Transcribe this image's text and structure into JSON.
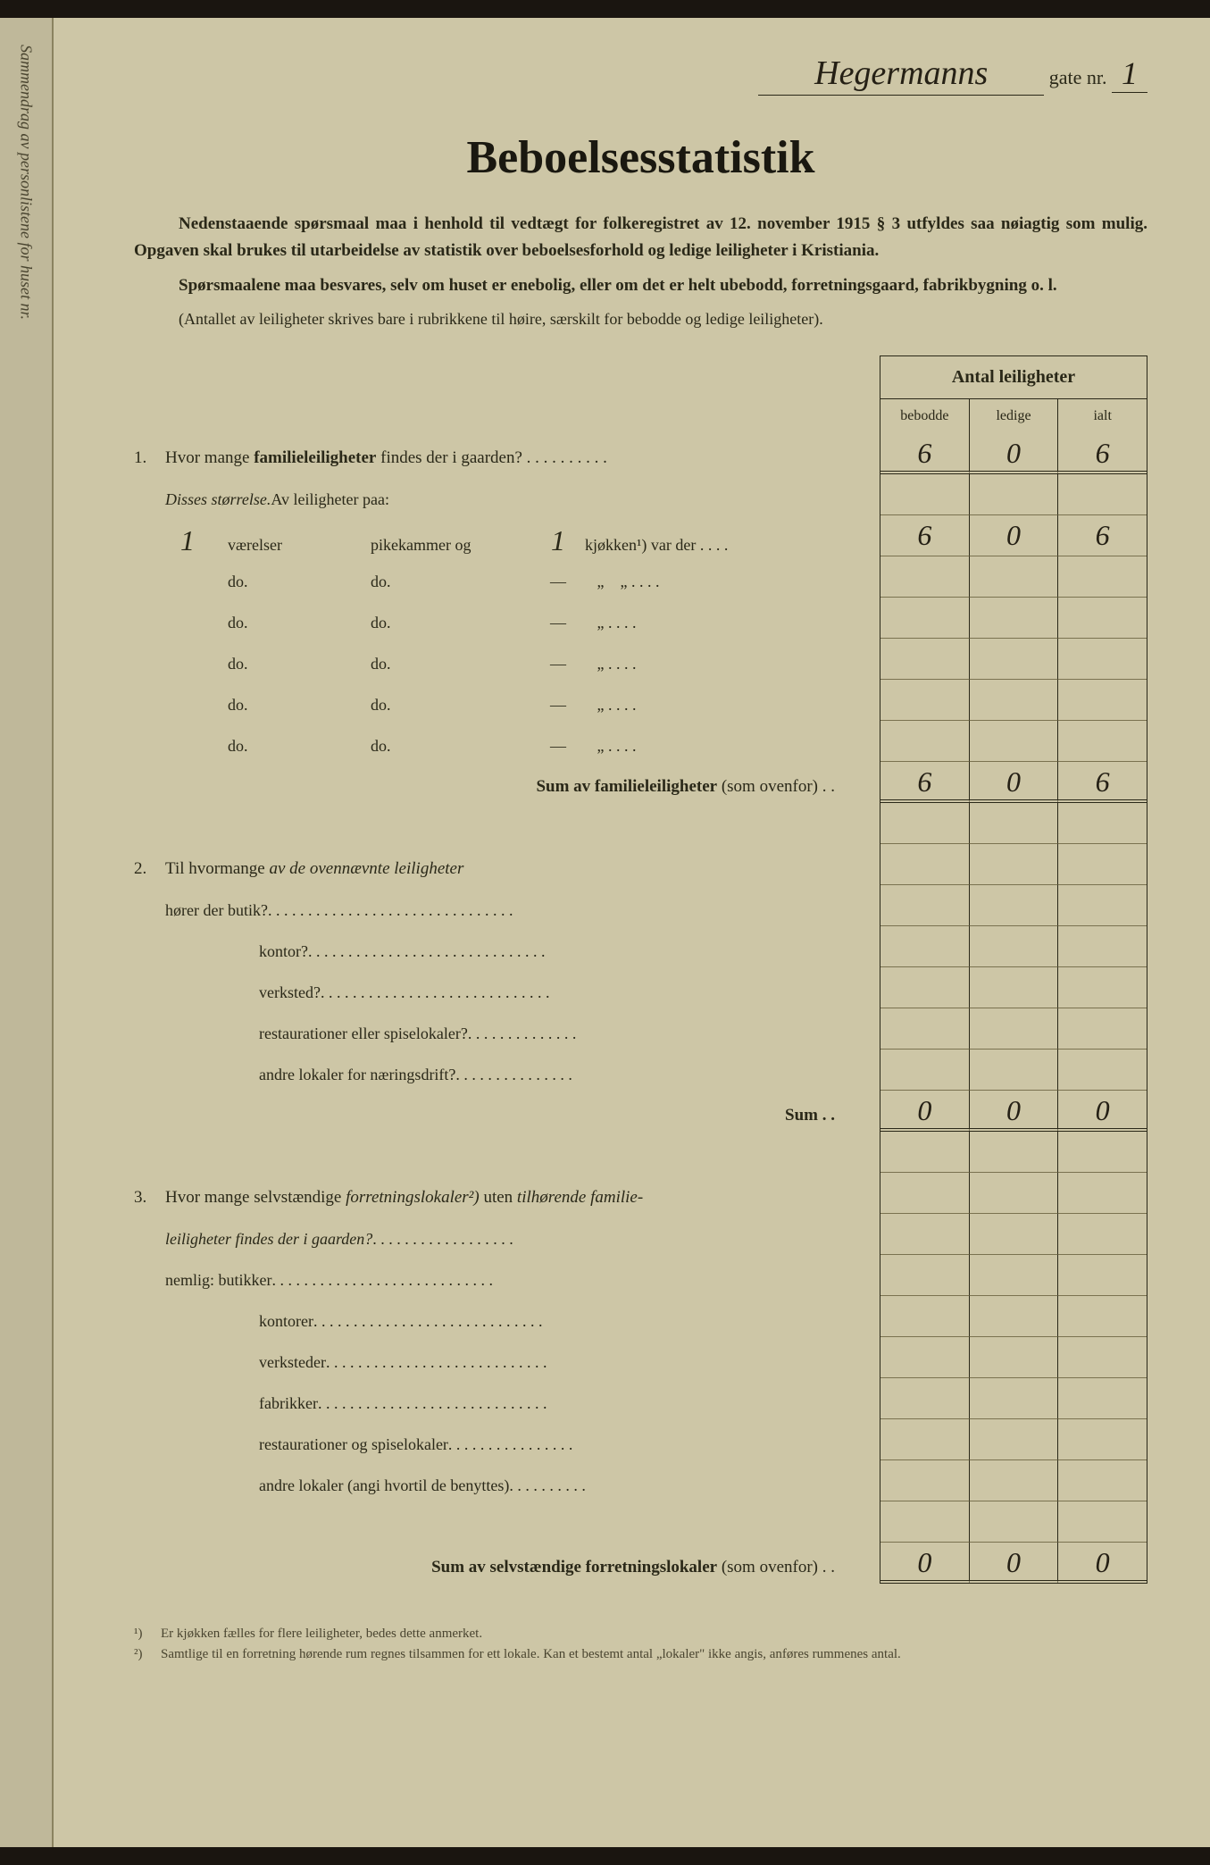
{
  "header": {
    "street_handwritten": "Hegermanns",
    "gate_label": "gate nr.",
    "nr_handwritten": "1"
  },
  "title": "Beboelsesstatistik",
  "intro": {
    "p1": "Nedenstaaende spørsmaal maa i henhold til vedtægt for folkeregistret av 12. november 1915 § 3 utfyldes saa nøiagtig som mulig. Opgaven skal brukes til utarbeidelse av statistik over beboelsesforhold og ledige leiligheter i Kristiania.",
    "p2": "Spørsmaalene maa besvares, selv om huset er enebolig, eller om det er helt ubebodd, forretningsgaard, fabrikbygning o. l.",
    "p3": "(Antallet av leiligheter skrives bare i rubrikkene til høire, særskilt for bebodde og ledige leiligheter)."
  },
  "table": {
    "header": "Antal leiligheter",
    "cols": {
      "c1": "bebodde",
      "c2": "ledige",
      "c3": "ialt"
    },
    "rows": {
      "q1": {
        "bebodde": "6",
        "ledige": "0",
        "ialt": "6"
      },
      "size1": {
        "bebodde": "6",
        "ledige": "0",
        "ialt": "6"
      },
      "size2": {
        "bebodde": "",
        "ledige": "",
        "ialt": ""
      },
      "size3": {
        "bebodde": "",
        "ledige": "",
        "ialt": ""
      },
      "size4": {
        "bebodde": "",
        "ledige": "",
        "ialt": ""
      },
      "size5": {
        "bebodde": "",
        "ledige": "",
        "ialt": ""
      },
      "size6": {
        "bebodde": "",
        "ledige": "",
        "ialt": ""
      },
      "sum1": {
        "bebodde": "6",
        "ledige": "0",
        "ialt": "6"
      },
      "q2a": {
        "bebodde": "",
        "ledige": "",
        "ialt": ""
      },
      "q2b": {
        "bebodde": "",
        "ledige": "",
        "ialt": ""
      },
      "q2c": {
        "bebodde": "",
        "ledige": "",
        "ialt": ""
      },
      "q2d": {
        "bebodde": "",
        "ledige": "",
        "ialt": ""
      },
      "q2e": {
        "bebodde": "",
        "ledige": "",
        "ialt": ""
      },
      "sum2": {
        "bebodde": "0",
        "ledige": "0",
        "ialt": "0"
      },
      "q3a": {
        "bebodde": "",
        "ledige": "",
        "ialt": ""
      },
      "q3b": {
        "bebodde": "",
        "ledige": "",
        "ialt": ""
      },
      "q3c": {
        "bebodde": "",
        "ledige": "",
        "ialt": ""
      },
      "q3d": {
        "bebodde": "",
        "ledige": "",
        "ialt": ""
      },
      "q3e": {
        "bebodde": "",
        "ledige": "",
        "ialt": ""
      },
      "q3f": {
        "bebodde": "",
        "ledige": "",
        "ialt": ""
      },
      "q3g": {
        "bebodde": "",
        "ledige": "",
        "ialt": ""
      },
      "sum3": {
        "bebodde": "0",
        "ledige": "0",
        "ialt": "0"
      }
    }
  },
  "questions": {
    "q1": {
      "num": "1.",
      "text_a": "Hvor mange ",
      "text_b": "familieleiligheter",
      "text_c": " findes der i gaarden?",
      "disses": "Disses størrelse.",
      "av_leil": " Av leiligheter paa:",
      "vaerelser_hw": "1",
      "vaerelser": "værelser",
      "pikekammer": "pikekammer og",
      "kjokken_hw": "1",
      "kjokken": "kjøkken¹) var der",
      "do": "do.",
      "dash": "—",
      "quote": "„",
      "sum_label": "Sum av familieleiligheter",
      "sum_suffix": " (som ovenfor) . ."
    },
    "q2": {
      "num": "2.",
      "text": "Til hvormange ",
      "text_italic": "av de ovennævnte leiligheter",
      "lines": {
        "a": "hører der butik?",
        "b": "kontor?",
        "c": "verksted?",
        "d": "restaurationer eller spiselokaler?",
        "e": "andre lokaler for næringsdrift?"
      },
      "sum": "Sum . ."
    },
    "q3": {
      "num": "3.",
      "text_a": "Hvor mange selvstændige ",
      "text_italic": "forretningslokaler²) ",
      "text_b": "uten ",
      "text_italic2": "tilhørende familie-",
      "text_c": "leiligheter findes der i gaarden?",
      "lines": {
        "a": "nemlig:  butikker",
        "b": "kontorer",
        "c": "verksteder",
        "d": "fabrikker",
        "e": "restaurationer og spiselokaler",
        "f": "andre lokaler (angi hvortil de benyttes)"
      },
      "sum_label": "Sum av selvstændige forretningslokaler",
      "sum_suffix": " (som ovenfor) . ."
    }
  },
  "footnotes": {
    "f1": {
      "num": "¹)",
      "text": "Er kjøkken fælles for flere leiligheter, bedes dette anmerket."
    },
    "f2": {
      "num": "²)",
      "text": "Samtlige til en forretning hørende rum regnes tilsammen for ett lokale. Kan et bestemt antal „lokaler\" ikke angis, anføres rummenes antal."
    }
  },
  "left_margin": "Sammendrag av personlistene for huset nr.",
  "colors": {
    "paper": "#cdc6a6",
    "ink": "#2a2818",
    "handwriting": "#252015",
    "background": "#1a1510"
  }
}
